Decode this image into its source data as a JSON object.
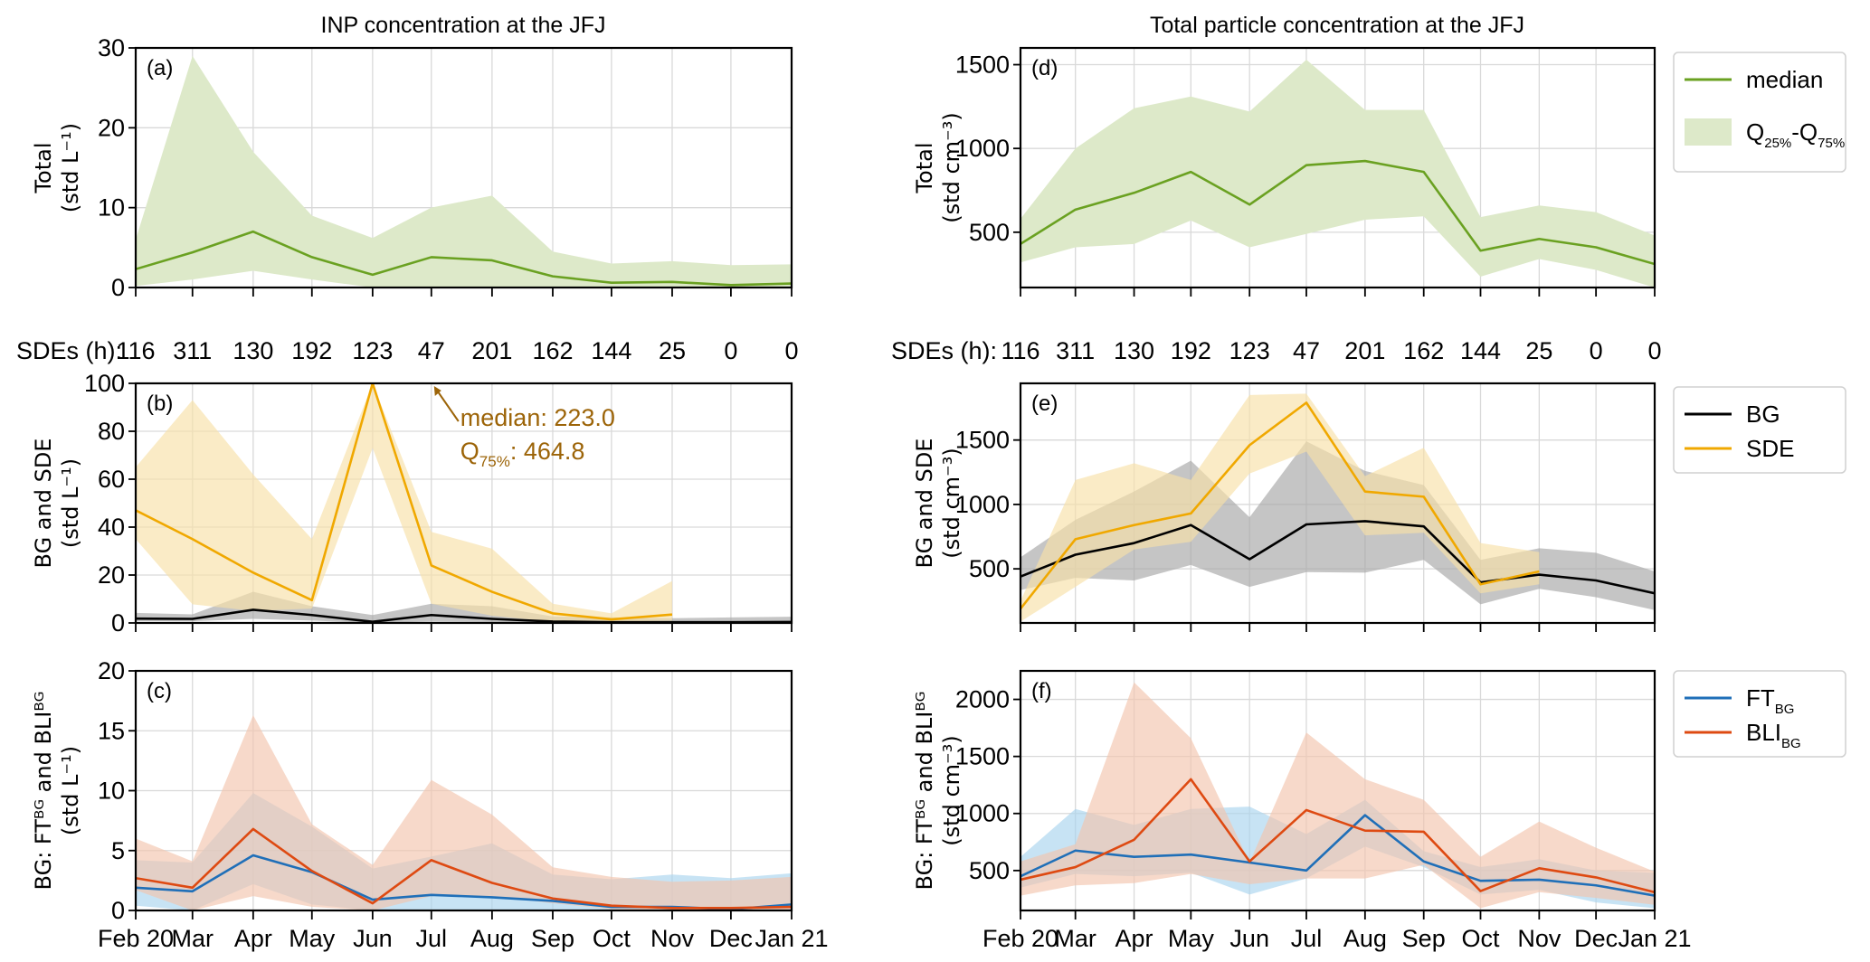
{
  "chart_data": {
    "type": "line",
    "x_ticks": [
      "Feb 20",
      "Mar",
      "Apr",
      "May",
      "Jun",
      "Jul",
      "Aug",
      "Sep",
      "Oct",
      "Nov",
      "Dec",
      "Jan 21"
    ],
    "x_day_offsets": [
      0,
      29,
      60,
      90,
      121,
      151,
      182,
      213,
      243,
      274,
      304,
      335
    ],
    "sde_hours_label": "SDEs (h):",
    "sde_hours": [
      116,
      311,
      130,
      192,
      123,
      47,
      201,
      162,
      144,
      25,
      0,
      0
    ],
    "column_titles": [
      "INP concentration at the JFJ",
      "Total particle concentration at the JFJ"
    ],
    "colors": {
      "total": "#6aa121",
      "total_fill": "#dde9c9",
      "bg": "#000000",
      "bg_fill": "#a6a6a6",
      "sde": "#f0a800",
      "sde_fill": "#f7e1a8",
      "ft": "#1f6fb8",
      "ft_fill": "#a9d4ee",
      "bli": "#de4a12",
      "bli_fill": "#f2c4ad",
      "annotation": "#9c6408"
    },
    "panels": [
      {
        "id": "a",
        "label": "(a)",
        "ylabel": [
          "Total",
          "(std L⁻¹)"
        ],
        "ylim": [
          0,
          30
        ],
        "yticks": [
          0,
          10,
          20,
          30
        ],
        "series": [
          {
            "name": "median",
            "color_key": "total",
            "values": [
              2.3,
              4.4,
              7.0,
              3.8,
              1.6,
              3.8,
              3.4,
              1.4,
              0.6,
              0.7,
              0.3,
              0.5
            ],
            "q25": [
              0.2,
              1.0,
              2.1,
              1.0,
              0.0,
              0.0,
              0.0,
              0.0,
              0.0,
              0.0,
              0.0,
              0.0
            ],
            "q75": [
              6,
              29,
              17,
              9,
              6.2,
              10,
              11.5,
              4.5,
              3,
              3.3,
              2.8,
              2.9
            ]
          }
        ]
      },
      {
        "id": "d",
        "label": "(d)",
        "ylabel": [
          "Total",
          "(std cm⁻³)"
        ],
        "ylim": [
          170,
          1600
        ],
        "yticks": [
          500,
          1000,
          1500
        ],
        "series": [
          {
            "name": "median",
            "color_key": "total",
            "values": [
              430,
              635,
              735,
              860,
              665,
              900,
              925,
              860,
              390,
              460,
              410,
              310
            ],
            "q25": [
              320,
              410,
              430,
              570,
              410,
              490,
              575,
              595,
              235,
              340,
              275,
              170
            ],
            "q75": [
              580,
              1000,
              1240,
              1310,
              1220,
              1530,
              1230,
              1230,
              590,
              660,
              620,
              480
            ]
          }
        ]
      },
      {
        "id": "b",
        "label": "(b)",
        "ylabel": [
          "BG and SDE",
          "(std L⁻¹)"
        ],
        "ylim": [
          0,
          100
        ],
        "yticks": [
          0,
          20,
          40,
          60,
          80,
          100
        ],
        "annotation": {
          "line1": "median: 223.0",
          "line2_prefix": "Q",
          "line2_sub": "75%",
          "line2_suffix": ": 464.8"
        },
        "series": [
          {
            "name": "BG",
            "color_key": "bg",
            "values": [
              1.8,
              1.7,
              5.5,
              3.3,
              0.5,
              3.3,
              1.7,
              0.6,
              0.3,
              0.3,
              0.3,
              0.4
            ],
            "q25": [
              0.8,
              0.7,
              1.7,
              1.0,
              0.0,
              0.6,
              0.4,
              0.1,
              0.1,
              0.0,
              0.0,
              0.0
            ],
            "q75": [
              4.2,
              3.6,
              13,
              7.0,
              3.3,
              8.0,
              7.0,
              2.7,
              2.3,
              2.0,
              2.3,
              2.6
            ]
          },
          {
            "name": "SDE",
            "color_key": "sde",
            "values": [
              47,
              35,
              21,
              9.5,
              223,
              24,
              13,
              4,
              1.5,
              3.5,
              null,
              null
            ],
            "q25": [
              35,
              7.8,
              5,
              6,
              73,
              8,
              3,
              0.5,
              0.5,
              1,
              null,
              null
            ],
            "q75": [
              65,
              93,
              62,
              35,
              465,
              38,
              31,
              8,
              4,
              17.5,
              null,
              null
            ]
          }
        ]
      },
      {
        "id": "e",
        "label": "(e)",
        "ylabel": [
          "BG and SDE",
          "(std cm⁻³)"
        ],
        "ylim": [
          80,
          1940
        ],
        "yticks": [
          500,
          1000,
          1500
        ],
        "series": [
          {
            "name": "BG",
            "color_key": "bg",
            "values": [
              440,
              610,
              700,
              840,
              575,
              845,
              870,
              830,
              395,
              455,
              410,
              310
            ],
            "q25": [
              335,
              430,
              410,
              530,
              360,
              475,
              470,
              570,
              225,
              345,
              280,
              180
            ],
            "q75": [
              590,
              880,
              1100,
              1340,
              900,
              1490,
              1260,
              1150,
              570,
              660,
              625,
              480
            ]
          },
          {
            "name": "SDE",
            "color_key": "sde",
            "values": [
              190,
              730,
              840,
              930,
              1460,
              1790,
              1100,
              1060,
              380,
              480,
              null,
              null
            ],
            "q25": [
              90,
              360,
              650,
              710,
              1240,
              1410,
              760,
              780,
              310,
              380,
              null,
              null
            ],
            "q75": [
              250,
              1190,
              1320,
              1190,
              1850,
              1860,
              1220,
              1440,
              700,
              630,
              null,
              null
            ]
          }
        ]
      },
      {
        "id": "c",
        "label": "(c)",
        "ylabel": [
          "BG: FTᴮᴳ and BLIᴮᴳ",
          "(std L⁻¹)"
        ],
        "ylim": [
          0,
          20
        ],
        "yticks": [
          0,
          5,
          10,
          15,
          20
        ],
        "series": [
          {
            "name": "FT_BG",
            "color_key": "ft",
            "values": [
              1.9,
              1.6,
              4.6,
              3.2,
              0.9,
              1.3,
              1.1,
              0.8,
              0.3,
              0.3,
              0.1,
              0.5
            ],
            "q25": [
              0.4,
              0.0,
              2.2,
              0.5,
              0.0,
              0.0,
              0.0,
              0.0,
              0.0,
              0.0,
              0.0,
              0.0
            ],
            "q75": [
              4.2,
              4.0,
              9.8,
              7.0,
              3.5,
              4.5,
              5.6,
              3.0,
              2.6,
              3.0,
              2.7,
              3.1
            ]
          },
          {
            "name": "BLI_BG",
            "color_key": "bli",
            "values": [
              2.7,
              1.9,
              6.8,
              3.3,
              0.6,
              4.2,
              2.3,
              1.0,
              0.4,
              0.2,
              0.2,
              0.3
            ],
            "q25": [
              1.7,
              0.0,
              1.2,
              0.3,
              0.0,
              1.2,
              1.2,
              0.6,
              0.1,
              0.0,
              0.0,
              0.0
            ],
            "q75": [
              6,
              4.1,
              16.3,
              7.2,
              3.8,
              10.9,
              8,
              3.6,
              2.8,
              2.4,
              2.5,
              2.8
            ]
          }
        ]
      },
      {
        "id": "f",
        "label": "(f)",
        "ylabel": [
          "BG: FTᴮᴳ and BLIᴮᴳ",
          "(std cm⁻³)"
        ],
        "ylim": [
          150,
          2250
        ],
        "yticks": [
          500,
          1000,
          1500,
          2000
        ],
        "series": [
          {
            "name": "FT_BG",
            "color_key": "ft",
            "values": [
              450,
              675,
              620,
              640,
              570,
              500,
              985,
              580,
              410,
              420,
              370,
              280
            ],
            "q25": [
              350,
              470,
              450,
              480,
              290,
              430,
              710,
              530,
              290,
              330,
              220,
              170
            ],
            "q75": [
              620,
              1040,
              900,
              1040,
              1060,
              820,
              1120,
              670,
              530,
              600,
              500,
              480
            ]
          },
          {
            "name": "BLI_BG",
            "color_key": "bli",
            "values": [
              420,
              530,
              770,
              1300,
              580,
              1030,
              850,
              840,
              320,
              520,
              440,
              310
            ],
            "q25": [
              280,
              370,
              390,
              470,
              380,
              430,
              430,
              550,
              170,
              310,
              260,
              200
            ],
            "q75": [
              580,
              730,
              2150,
              1660,
              570,
              1710,
              1300,
              1120,
              620,
              930,
              700,
              490
            ]
          }
        ]
      }
    ],
    "legends": [
      {
        "panel": "d",
        "entries": [
          {
            "type": "line",
            "color_key": "total",
            "label": "median"
          },
          {
            "type": "fill",
            "color_key": "total_fill",
            "label": "Q",
            "sub1": "25%",
            "mid": "-Q",
            "sub2": "75%"
          }
        ]
      },
      {
        "panel": "e",
        "entries": [
          {
            "type": "line",
            "color_key": "bg",
            "label": "BG"
          },
          {
            "type": "line",
            "color_key": "sde",
            "label": "SDE"
          }
        ]
      },
      {
        "panel": "f",
        "entries": [
          {
            "type": "line",
            "color_key": "ft",
            "label": "FT",
            "sub": "BG"
          },
          {
            "type": "line",
            "color_key": "bli",
            "label": "BLI",
            "sub": "BG"
          }
        ]
      }
    ]
  }
}
